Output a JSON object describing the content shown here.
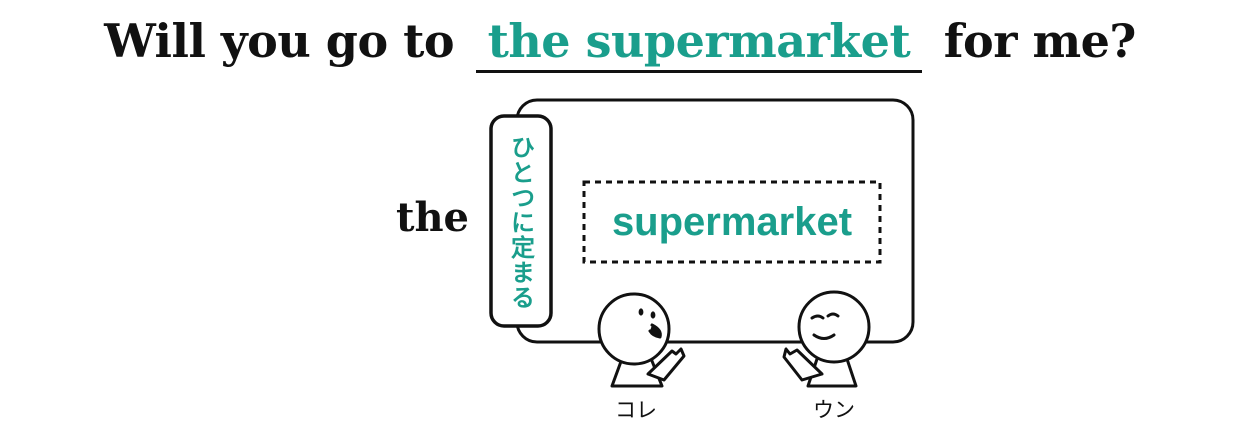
{
  "sentence": {
    "before": "Will you go to",
    "blank": "the supermarket",
    "after": "for me?"
  },
  "article": "the",
  "article_note": "ひとつに定まる",
  "noun": "supermarket",
  "characters": {
    "left_speech": "コレ",
    "right_speech": "ウン"
  },
  "colors": {
    "accent": "#1a9e8c",
    "ink": "#111111"
  }
}
